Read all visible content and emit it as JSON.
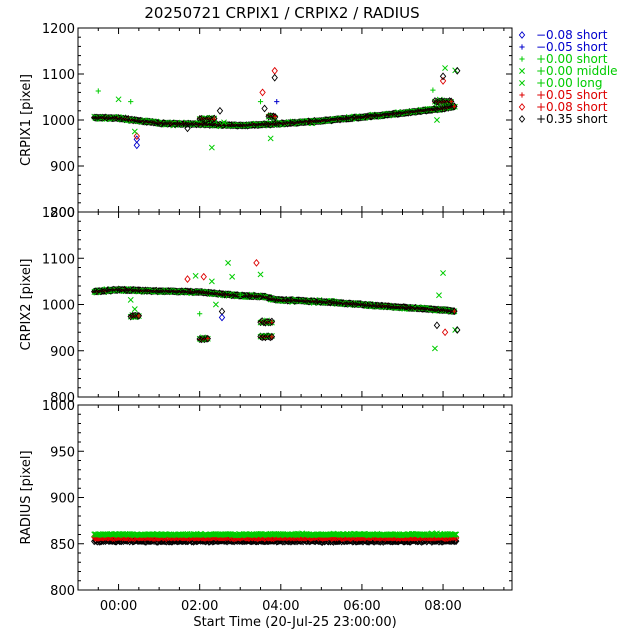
{
  "title": "20250721 CRPIX1 / CRPIX2 / RADIUS",
  "xlabel": "Start Time (20-Jul-25 23:00:00)",
  "x_ticks": [
    "00:00",
    "02:00",
    "04:00",
    "06:00",
    "08:00"
  ],
  "legend": [
    {
      "symbol": "diamond",
      "label": "−0.08 short",
      "color": "#0000cc"
    },
    {
      "symbol": "plus",
      "label": "−0.05 short",
      "color": "#0000cc"
    },
    {
      "symbol": "plus",
      "label": "+0.00 short",
      "color": "#00cc00"
    },
    {
      "symbol": "cross",
      "label": "+0.00 middle",
      "color": "#00cc00"
    },
    {
      "symbol": "cross",
      "label": "+0.00 long",
      "color": "#00cc00"
    },
    {
      "symbol": "plus",
      "label": "+0.05 short",
      "color": "#dd0000"
    },
    {
      "symbol": "diamond",
      "label": "+0.08 short",
      "color": "#dd0000"
    },
    {
      "symbol": "diamond",
      "label": "+0.35 short",
      "color": "#000000"
    }
  ],
  "chart_data": [
    {
      "type": "scatter",
      "ylabel": "CRPIX1 [pixel]",
      "ylim": [
        800,
        1200
      ],
      "yticks": [
        800,
        900,
        1000,
        1100,
        1200
      ],
      "xlim_hours": [
        -1.0,
        9.7
      ],
      "trend": [
        [
          -0.6,
          1005
        ],
        [
          0,
          1004
        ],
        [
          1,
          993
        ],
        [
          2,
          991
        ],
        [
          3,
          988
        ],
        [
          4,
          992
        ],
        [
          5,
          998
        ],
        [
          6,
          1006
        ],
        [
          7,
          1015
        ],
        [
          8,
          1025
        ],
        [
          8.3,
          1030
        ]
      ],
      "bumps": [
        [
          2.0,
          2.4,
          1002
        ],
        [
          3.7,
          3.9,
          1008
        ],
        [
          7.8,
          8.2,
          1040
        ]
      ],
      "outliers": [
        {
          "x": -0.5,
          "y": 1063,
          "s": "plus",
          "c": "#00cc00"
        },
        {
          "x": 0.0,
          "y": 1045,
          "s": "cross",
          "c": "#00cc00"
        },
        {
          "x": 0.3,
          "y": 1040,
          "s": "plus",
          "c": "#00cc00"
        },
        {
          "x": 0.45,
          "y": 958,
          "s": "diamond",
          "c": "#0000cc"
        },
        {
          "x": 0.45,
          "y": 945,
          "s": "diamond",
          "c": "#0000cc"
        },
        {
          "x": 0.45,
          "y": 965,
          "s": "diamond",
          "c": "#dd0000"
        },
        {
          "x": 0.4,
          "y": 975,
          "s": "cross",
          "c": "#00cc00"
        },
        {
          "x": 1.7,
          "y": 982,
          "s": "diamond",
          "c": "#000000"
        },
        {
          "x": 2.3,
          "y": 940,
          "s": "cross",
          "c": "#00cc00"
        },
        {
          "x": 2.5,
          "y": 1020,
          "s": "diamond",
          "c": "#000000"
        },
        {
          "x": 2.6,
          "y": 995,
          "s": "cross",
          "c": "#00cc00"
        },
        {
          "x": 3.5,
          "y": 1040,
          "s": "plus",
          "c": "#00cc00"
        },
        {
          "x": 3.55,
          "y": 1060,
          "s": "diamond",
          "c": "#dd0000"
        },
        {
          "x": 3.6,
          "y": 1025,
          "s": "diamond",
          "c": "#000000"
        },
        {
          "x": 3.75,
          "y": 960,
          "s": "cross",
          "c": "#00cc00"
        },
        {
          "x": 3.85,
          "y": 1107,
          "s": "diamond",
          "c": "#dd0000"
        },
        {
          "x": 3.85,
          "y": 1092,
          "s": "diamond",
          "c": "#000000"
        },
        {
          "x": 3.9,
          "y": 1040,
          "s": "plus",
          "c": "#0000cc"
        },
        {
          "x": 7.75,
          "y": 1065,
          "s": "plus",
          "c": "#00cc00"
        },
        {
          "x": 7.85,
          "y": 1000,
          "s": "cross",
          "c": "#00cc00"
        },
        {
          "x": 8.0,
          "y": 1085,
          "s": "diamond",
          "c": "#dd0000"
        },
        {
          "x": 8.0,
          "y": 1095,
          "s": "diamond",
          "c": "#000000"
        },
        {
          "x": 8.05,
          "y": 1113,
          "s": "cross",
          "c": "#00cc00"
        },
        {
          "x": 8.3,
          "y": 1108,
          "s": "cross",
          "c": "#00cc00"
        },
        {
          "x": 8.35,
          "y": 1107,
          "s": "diamond",
          "c": "#000000"
        }
      ]
    },
    {
      "type": "scatter",
      "ylabel": "CRPIX2 [pixel]",
      "ylim": [
        800,
        1200
      ],
      "yticks": [
        800,
        900,
        1000,
        1100,
        1200
      ],
      "xlim_hours": [
        -1.0,
        9.7
      ],
      "trend": [
        [
          -0.6,
          1028
        ],
        [
          0,
          1032
        ],
        [
          1,
          1029
        ],
        [
          2,
          1027
        ],
        [
          3,
          1019
        ],
        [
          3.6,
          1017
        ],
        [
          3.9,
          1010
        ],
        [
          4.5,
          1008
        ],
        [
          5,
          1006
        ],
        [
          6,
          1000
        ],
        [
          7,
          994
        ],
        [
          8,
          988
        ],
        [
          8.3,
          985
        ]
      ],
      "bumps": [
        [
          0.3,
          0.5,
          975
        ],
        [
          2.0,
          2.2,
          925
        ],
        [
          3.5,
          3.8,
          962
        ],
        [
          3.5,
          3.8,
          930
        ]
      ],
      "outliers": [
        {
          "x": 0.3,
          "y": 1010,
          "s": "cross",
          "c": "#00cc00"
        },
        {
          "x": 0.4,
          "y": 990,
          "s": "cross",
          "c": "#00cc00"
        },
        {
          "x": 1.7,
          "y": 1055,
          "s": "diamond",
          "c": "#dd0000"
        },
        {
          "x": 1.9,
          "y": 1062,
          "s": "cross",
          "c": "#00cc00"
        },
        {
          "x": 2.0,
          "y": 980,
          "s": "plus",
          "c": "#00cc00"
        },
        {
          "x": 2.1,
          "y": 1060,
          "s": "diamond",
          "c": "#dd0000"
        },
        {
          "x": 2.3,
          "y": 1050,
          "s": "cross",
          "c": "#00cc00"
        },
        {
          "x": 2.4,
          "y": 1000,
          "s": "cross",
          "c": "#00cc00"
        },
        {
          "x": 2.55,
          "y": 985,
          "s": "diamond",
          "c": "#000000"
        },
        {
          "x": 2.55,
          "y": 972,
          "s": "diamond",
          "c": "#0000cc"
        },
        {
          "x": 2.7,
          "y": 1090,
          "s": "cross",
          "c": "#00cc00"
        },
        {
          "x": 2.8,
          "y": 1060,
          "s": "cross",
          "c": "#00cc00"
        },
        {
          "x": 3.0,
          "y": 1020,
          "s": "plus",
          "c": "#00cc00"
        },
        {
          "x": 3.4,
          "y": 1090,
          "s": "diamond",
          "c": "#dd0000"
        },
        {
          "x": 3.5,
          "y": 1065,
          "s": "cross",
          "c": "#00cc00"
        },
        {
          "x": 7.8,
          "y": 905,
          "s": "cross",
          "c": "#00cc00"
        },
        {
          "x": 7.85,
          "y": 955,
          "s": "diamond",
          "c": "#000000"
        },
        {
          "x": 7.9,
          "y": 1020,
          "s": "cross",
          "c": "#00cc00"
        },
        {
          "x": 8.0,
          "y": 1068,
          "s": "cross",
          "c": "#00cc00"
        },
        {
          "x": 8.05,
          "y": 940,
          "s": "diamond",
          "c": "#dd0000"
        },
        {
          "x": 8.3,
          "y": 945,
          "s": "cross",
          "c": "#00cc00"
        },
        {
          "x": 8.35,
          "y": 945,
          "s": "diamond",
          "c": "#000000"
        }
      ]
    },
    {
      "type": "scatter",
      "ylabel": "RADIUS [pixel]",
      "ylim": [
        800,
        1000
      ],
      "yticks": [
        800,
        850,
        900,
        950,
        1000
      ],
      "xlim_hours": [
        -1.0,
        9.7
      ],
      "bands": [
        {
          "label": "+0.35 short",
          "y": 853,
          "color": "#000000",
          "s": "diamond"
        },
        {
          "label": "+0.08 short",
          "y": 857,
          "color": "#dd0000",
          "s": "diamond"
        },
        {
          "label": "+0.00 short",
          "y": 860,
          "color": "#00cc00",
          "s": "cross"
        }
      ]
    }
  ]
}
